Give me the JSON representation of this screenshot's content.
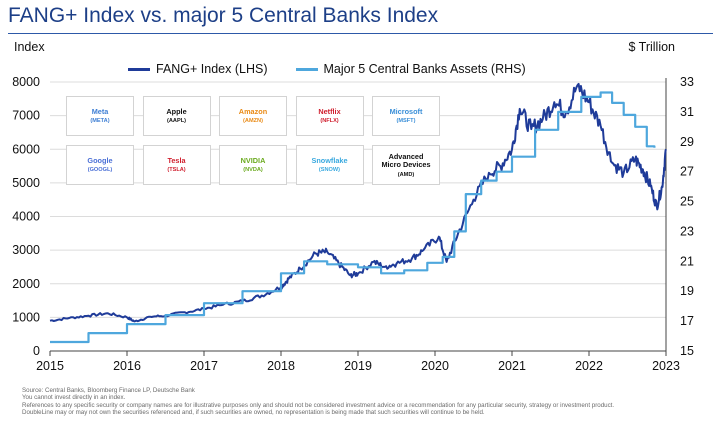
{
  "title": "FANG+ Index vs. major 5 Central Banks Index",
  "left_axis_label": "Index",
  "right_axis_label": "$ Trillion",
  "footer": {
    "source": "Source: Central Banks, Bloomberg Finance LP, Deutsche Bank",
    "line2": "You cannot invest directly in an index.",
    "line3": "References to any specific security or company names are for illustrative purposes only and should not be considered investment advice or a recommendation for any particular security, strategy or investment product.",
    "line4": "DoubleLine may or may not own the securities referenced and, if such securities are owned, no representation is being made that such securities will continue to be held."
  },
  "companies": [
    {
      "name": "Meta",
      "ticker": "(META)",
      "color": "#3f7fd4"
    },
    {
      "name": "Apple",
      "ticker": "(AAPL)",
      "color": "#111111"
    },
    {
      "name": "Amazon",
      "ticker": "(AMZN)",
      "color": "#e98a15"
    },
    {
      "name": "Netflix",
      "ticker": "(NFLX)",
      "color": "#d01f2e"
    },
    {
      "name": "Microsoft",
      "ticker": "(MSFT)",
      "color": "#3a8fd8"
    },
    {
      "name": "Google",
      "ticker": "(GOOGL)",
      "color": "#4a6fd6"
    },
    {
      "name": "Tesla",
      "ticker": "(TSLA)",
      "color": "#d01f2e"
    },
    {
      "name": "NVIDIA",
      "ticker": "(NVDA)",
      "color": "#6aaa1e"
    },
    {
      "name": "Snowflake",
      "ticker": "(SNOW)",
      "color": "#3aa9df"
    },
    {
      "name": "Advanced Micro Devices",
      "ticker": "(AMD)",
      "color": "#111111"
    }
  ],
  "chart_data": {
    "type": "line",
    "x_ticks": [
      "2015",
      "2016",
      "2017",
      "2018",
      "2019",
      "2020",
      "2021",
      "2022",
      "2023"
    ],
    "x_range": [
      2015,
      2023
    ],
    "y_left": {
      "label": "Index",
      "min": 0,
      "max": 8000,
      "ticks": [
        "0",
        "1000",
        "2000",
        "3000",
        "4000",
        "5000",
        "6000",
        "7000",
        "8000"
      ]
    },
    "y_right": {
      "label": "$ Trillion",
      "min": 15,
      "max": 33,
      "ticks": [
        "15",
        "17",
        "19",
        "21",
        "23",
        "25",
        "27",
        "29",
        "31",
        "33"
      ]
    },
    "grid": true,
    "legend_position": "top",
    "series": [
      {
        "name": "FANG+ Index (LHS)",
        "axis": "left",
        "color": "#1f3b99",
        "points": [
          [
            2015.0,
            900
          ],
          [
            2015.25,
            980
          ],
          [
            2015.5,
            1050
          ],
          [
            2015.75,
            1120
          ],
          [
            2016.0,
            1000
          ],
          [
            2016.1,
            880
          ],
          [
            2016.3,
            1020
          ],
          [
            2016.5,
            1050
          ],
          [
            2016.75,
            1150
          ],
          [
            2017.0,
            1250
          ],
          [
            2017.25,
            1380
          ],
          [
            2017.5,
            1480
          ],
          [
            2017.75,
            1650
          ],
          [
            2018.0,
            1900
          ],
          [
            2018.1,
            2150
          ],
          [
            2018.25,
            2450
          ],
          [
            2018.45,
            2900
          ],
          [
            2018.6,
            2950
          ],
          [
            2018.75,
            2600
          ],
          [
            2018.9,
            2250
          ],
          [
            2019.0,
            2300
          ],
          [
            2019.2,
            2650
          ],
          [
            2019.35,
            2500
          ],
          [
            2019.5,
            2600
          ],
          [
            2019.7,
            2750
          ],
          [
            2019.85,
            3000
          ],
          [
            2020.05,
            3400
          ],
          [
            2020.15,
            2650
          ],
          [
            2020.3,
            3500
          ],
          [
            2020.5,
            4500
          ],
          [
            2020.7,
            5300
          ],
          [
            2020.85,
            5500
          ],
          [
            2021.0,
            6000
          ],
          [
            2021.1,
            7200
          ],
          [
            2021.25,
            6600
          ],
          [
            2021.4,
            6900
          ],
          [
            2021.55,
            7400
          ],
          [
            2021.7,
            7100
          ],
          [
            2021.85,
            7900
          ],
          [
            2022.0,
            7400
          ],
          [
            2022.15,
            6700
          ],
          [
            2022.3,
            5600
          ],
          [
            2022.45,
            5300
          ],
          [
            2022.6,
            5700
          ],
          [
            2022.7,
            5400
          ],
          [
            2022.8,
            4900
          ],
          [
            2022.88,
            4300
          ],
          [
            2022.95,
            4900
          ],
          [
            2023.0,
            6000
          ]
        ]
      },
      {
        "name": "Major 5 Central Banks Assets (RHS)",
        "axis": "right",
        "color": "#4ea7dd",
        "points": [
          [
            2015.0,
            15.6
          ],
          [
            2015.5,
            16.2
          ],
          [
            2016.0,
            16.8
          ],
          [
            2016.5,
            17.4
          ],
          [
            2017.0,
            18.2
          ],
          [
            2017.5,
            19.0
          ],
          [
            2018.0,
            20.2
          ],
          [
            2018.3,
            21.0
          ],
          [
            2018.6,
            20.8
          ],
          [
            2019.0,
            20.6
          ],
          [
            2019.3,
            20.2
          ],
          [
            2019.6,
            20.4
          ],
          [
            2019.9,
            20.9
          ],
          [
            2020.1,
            21.3
          ],
          [
            2020.25,
            23.0
          ],
          [
            2020.4,
            25.5
          ],
          [
            2020.6,
            26.4
          ],
          [
            2020.8,
            27.0
          ],
          [
            2021.0,
            28.0
          ],
          [
            2021.3,
            29.8
          ],
          [
            2021.6,
            31.0
          ],
          [
            2021.9,
            32.0
          ],
          [
            2022.15,
            32.3
          ],
          [
            2022.3,
            31.6
          ],
          [
            2022.45,
            30.8
          ],
          [
            2022.6,
            30.0
          ],
          [
            2022.75,
            28.7
          ],
          [
            2022.85,
            28.6
          ]
        ]
      }
    ]
  }
}
